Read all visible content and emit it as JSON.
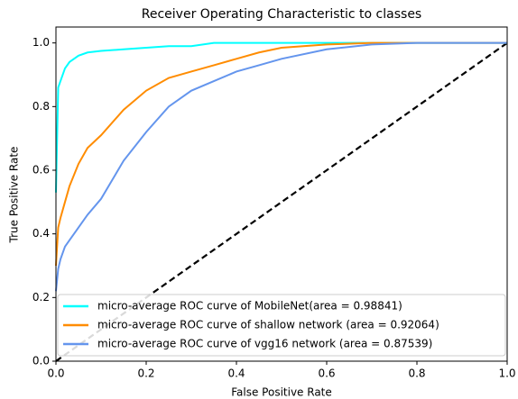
{
  "chart_data": {
    "type": "line",
    "title": "Receiver Operating Characteristic to classes",
    "xlabel": "False Positive Rate",
    "ylabel": "True Positive Rate",
    "x": [
      0,
      0.005,
      0.01,
      0.02,
      0.03,
      0.05,
      0.07,
      0.1,
      0.15,
      0.2,
      0.25,
      0.3,
      0.35,
      0.4,
      0.45,
      0.5,
      0.6,
      0.7,
      0.8,
      0.9,
      1.0
    ],
    "series": [
      {
        "name": "micro-average ROC curve of MobileNet(area = 0.98841)",
        "color": "#00ffff",
        "values": [
          0.53,
          0.86,
          0.88,
          0.92,
          0.94,
          0.96,
          0.97,
          0.975,
          0.98,
          0.985,
          0.99,
          0.99,
          1.0,
          1.0,
          1.0,
          1.0,
          1.0,
          1.0,
          1.0,
          1.0,
          1.0
        ]
      },
      {
        "name": "micro-average ROC curve of shallow network (area = 0.92064)",
        "color": "#ff8c00",
        "values": [
          0.3,
          0.42,
          0.45,
          0.5,
          0.55,
          0.62,
          0.67,
          0.71,
          0.79,
          0.85,
          0.89,
          0.91,
          0.93,
          0.95,
          0.97,
          0.985,
          0.995,
          1.0,
          1.0,
          1.0,
          1.0
        ]
      },
      {
        "name": "micro-average ROC curve of vgg16 network (area = 0.87539)",
        "color": "#6495ed",
        "values": [
          0.22,
          0.29,
          0.32,
          0.36,
          0.38,
          0.42,
          0.46,
          0.51,
          0.63,
          0.72,
          0.8,
          0.85,
          0.88,
          0.91,
          0.93,
          0.95,
          0.98,
          0.995,
          1.0,
          1.0,
          1.0
        ]
      }
    ],
    "xlim": [
      0,
      1
    ],
    "ylim": [
      0,
      1.05
    ],
    "xticks": [
      {
        "value": 0,
        "label": "0.0"
      },
      {
        "value": 0.2,
        "label": "0.2"
      },
      {
        "value": 0.4,
        "label": "0.4"
      },
      {
        "value": 0.6,
        "label": "0.6"
      },
      {
        "value": 0.8,
        "label": "0.8"
      },
      {
        "value": 1,
        "label": "1.0"
      }
    ],
    "yticks": [
      {
        "value": 0,
        "label": "0.0"
      },
      {
        "value": 0.2,
        "label": "0.2"
      },
      {
        "value": 0.4,
        "label": "0.4"
      },
      {
        "value": 0.6,
        "label": "0.6"
      },
      {
        "value": 0.8,
        "label": "0.8"
      },
      {
        "value": 1,
        "label": "1.0"
      }
    ],
    "legend": "lower right"
  }
}
